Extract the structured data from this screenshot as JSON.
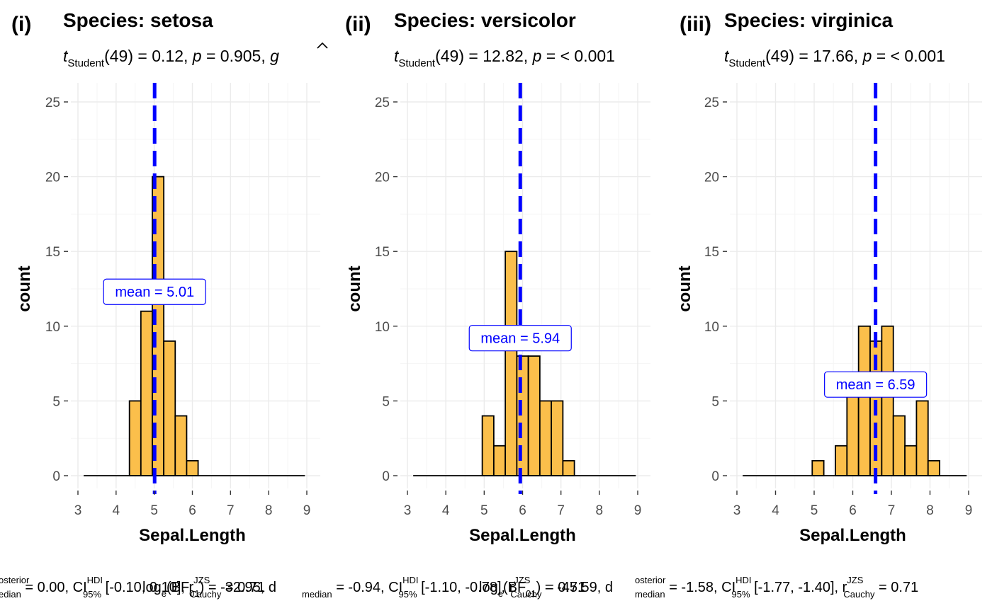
{
  "chart_data": [
    {
      "type": "bar",
      "tag": "(i)",
      "title": "Species: setosa",
      "subtitle": {
        "t_sym": "t",
        "t_sub": "Student",
        "df": "(49)",
        "eq1": " = 0.12, ",
        "p_sym": "p",
        "eq2": " = 0.905, ",
        "eff_sym": "g"
      },
      "xlabel": "Sepal.Length",
      "ylabel": "count",
      "xlim": [
        2.9,
        9.3
      ],
      "ylim": [
        -1.2,
        26.3
      ],
      "xticks": [
        "3",
        "4",
        "5",
        "6",
        "7",
        "8",
        "9"
      ],
      "yticks": [
        "0",
        "5",
        "10",
        "15",
        "20",
        "25"
      ],
      "bins": [
        {
          "x": 3.3,
          "count": 0
        },
        {
          "x": 3.6,
          "count": 0
        },
        {
          "x": 3.9,
          "count": 0
        },
        {
          "x": 4.2,
          "count": 0
        },
        {
          "x": 4.5,
          "count": 5
        },
        {
          "x": 4.8,
          "count": 11
        },
        {
          "x": 5.1,
          "count": 20
        },
        {
          "x": 5.4,
          "count": 9
        },
        {
          "x": 5.7,
          "count": 4
        },
        {
          "x": 6.0,
          "count": 1
        },
        {
          "x": 6.3,
          "count": 0
        },
        {
          "x": 6.6,
          "count": 0
        },
        {
          "x": 6.9,
          "count": 0
        },
        {
          "x": 7.2,
          "count": 0
        },
        {
          "x": 7.5,
          "count": 0
        },
        {
          "x": 7.8,
          "count": 0
        },
        {
          "x": 8.1,
          "count": 0
        },
        {
          "x": 8.4,
          "count": 0
        },
        {
          "x": 8.7,
          "count": 0
        }
      ],
      "bin_width": 0.6,
      "mean": 5.01,
      "mean_label": {
        "text": "mean",
        "op": "=",
        "value": "5.01"
      },
      "mean_label_y": 12.3,
      "caption": {
        "pre": "osterior",
        "sub_pre": "edian",
        "t1": " = 0.00, CI",
        "sup1": "HDI",
        "sub1": "95%",
        "t2": " [-0.10, 0.10], r",
        "sup2": "JZS",
        "sub2": "Cauchy",
        "t3": " = 0.71"
      },
      "caption_overlay": {
        "t1": "log",
        "sub1": "e",
        "t2": "(BF",
        "sub2": "01",
        "t3": ") = -32.95, d"
      }
    },
    {
      "type": "bar",
      "tag": "(ii)",
      "title": "Species: versicolor",
      "subtitle": {
        "t_sym": "t",
        "t_sub": "Student",
        "df": "(49)",
        "eq1": " = 12.82, ",
        "p_sym": "p",
        "eq2": " = < 0.001",
        "eff_sym": ""
      },
      "xlabel": "Sepal.Length",
      "ylabel": "count",
      "xlim": [
        2.9,
        9.3
      ],
      "ylim": [
        -1.2,
        26.3
      ],
      "xticks": [
        "3",
        "4",
        "5",
        "6",
        "7",
        "8",
        "9"
      ],
      "yticks": [
        "0",
        "5",
        "10",
        "15",
        "20",
        "25"
      ],
      "bins": [
        {
          "x": 3.3,
          "count": 0
        },
        {
          "x": 3.6,
          "count": 0
        },
        {
          "x": 3.9,
          "count": 0
        },
        {
          "x": 4.2,
          "count": 0
        },
        {
          "x": 4.5,
          "count": 0
        },
        {
          "x": 4.8,
          "count": 0
        },
        {
          "x": 5.1,
          "count": 4
        },
        {
          "x": 5.4,
          "count": 2
        },
        {
          "x": 5.7,
          "count": 15
        },
        {
          "x": 6.0,
          "count": 8
        },
        {
          "x": 6.3,
          "count": 8
        },
        {
          "x": 6.6,
          "count": 5
        },
        {
          "x": 6.9,
          "count": 5
        },
        {
          "x": 7.2,
          "count": 1
        },
        {
          "x": 7.5,
          "count": 0
        },
        {
          "x": 7.8,
          "count": 0
        },
        {
          "x": 8.1,
          "count": 0
        },
        {
          "x": 8.4,
          "count": 0
        },
        {
          "x": 8.7,
          "count": 0
        }
      ],
      "bin_width": 0.6,
      "mean": 5.94,
      "mean_label": {
        "text": "mean",
        "op": "=",
        "value": "5.94"
      },
      "mean_label_y": 9.2,
      "caption": {
        "pre": "",
        "sub_pre": "median",
        "t1": " = -0.94, CI",
        "sup1": "HDI",
        "sub1": "95%",
        "t2": " [-1.10, -0.78], r",
        "sup2": "JZS",
        "sub2": "Cauchy",
        "t3": " = 0.71"
      },
      "caption_overlay": {
        "t1": "log",
        "sub1": "e",
        "t2": "(BF",
        "sub2": "01",
        "t3": ") = -45.59, d"
      }
    },
    {
      "type": "bar",
      "tag": "(iii)",
      "title": "Species: virginica",
      "subtitle": {
        "t_sym": "t",
        "t_sub": "Student",
        "df": "(49)",
        "eq1": " = 17.66, ",
        "p_sym": "p",
        "eq2": " = < 0.001",
        "eff_sym": ""
      },
      "xlabel": "Sepal.Length",
      "ylabel": "count",
      "xlim": [
        2.9,
        9.3
      ],
      "ylim": [
        -1.2,
        26.3
      ],
      "xticks": [
        "3",
        "4",
        "5",
        "6",
        "7",
        "8",
        "9"
      ],
      "yticks": [
        "0",
        "5",
        "10",
        "15",
        "20",
        "25"
      ],
      "bins": [
        {
          "x": 3.3,
          "count": 0
        },
        {
          "x": 3.6,
          "count": 0
        },
        {
          "x": 3.9,
          "count": 0
        },
        {
          "x": 4.2,
          "count": 0
        },
        {
          "x": 4.5,
          "count": 0
        },
        {
          "x": 4.8,
          "count": 0
        },
        {
          "x": 5.1,
          "count": 1
        },
        {
          "x": 5.4,
          "count": 0
        },
        {
          "x": 5.7,
          "count": 2
        },
        {
          "x": 6.0,
          "count": 6
        },
        {
          "x": 6.3,
          "count": 10
        },
        {
          "x": 6.6,
          "count": 9
        },
        {
          "x": 6.9,
          "count": 10
        },
        {
          "x": 7.2,
          "count": 4
        },
        {
          "x": 7.5,
          "count": 2
        },
        {
          "x": 7.8,
          "count": 5
        },
        {
          "x": 8.1,
          "count": 1
        },
        {
          "x": 8.4,
          "count": 0
        },
        {
          "x": 8.7,
          "count": 0
        }
      ],
      "bin_width": 0.6,
      "mean": 6.59,
      "mean_label": {
        "text": "mean",
        "op": "=",
        "value": "6.59"
      },
      "mean_label_y": 6.1,
      "caption": {
        "pre": "osterior",
        "sub_pre": "median",
        "t1": " = -1.58, CI",
        "sup1": "HDI",
        "sub1": "95%",
        "t2": " [-1.77, -1.40], r",
        "sup2": "JZS",
        "sub2": "Cauchy",
        "t3": " = 0.71"
      },
      "caption_overlay": {
        "t1": "",
        "sub1": "",
        "t2": "",
        "sub2": "",
        "t3": ""
      }
    }
  ],
  "colors": {
    "bar_fill": "#FBBF4B",
    "bar_stroke": "#000000",
    "mean_line": "#0000FF",
    "grid_major": "#EBEBEB",
    "grid_minor": "#F5F5F5",
    "tick_text": "#4D4D4D"
  }
}
